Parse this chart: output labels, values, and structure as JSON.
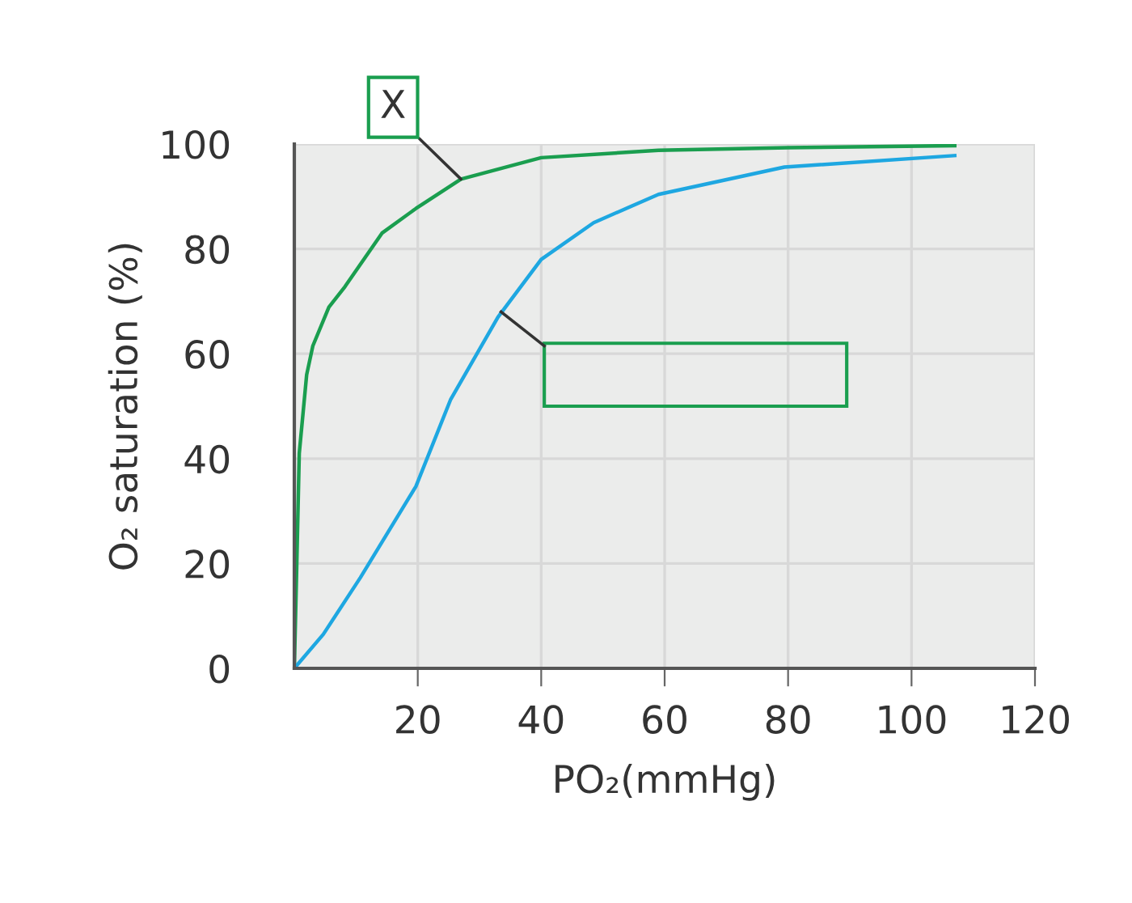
{
  "chart_data": {
    "type": "line",
    "xlabel": "PO₂(mmHg)",
    "ylabel": "O₂ saturation (%)",
    "xlim": [
      0,
      120
    ],
    "xticks": [
      20,
      40,
      60,
      80,
      100,
      120
    ],
    "ylim": [
      0,
      100
    ],
    "yticks": [
      0,
      20,
      40,
      60,
      80,
      100
    ],
    "grid": true,
    "marker": "none",
    "line_style": "solid",
    "series": [
      {
        "color": "#1a9e4f",
        "x": [
          0,
          0.4,
          0.8,
          2,
          3,
          5.6,
          8.2,
          14.2,
          19.7,
          27,
          40,
          59,
          80,
          107
        ],
        "values": [
          0,
          20,
          41,
          56,
          61.5,
          68.9,
          72.8,
          83,
          87.7,
          93.3,
          97.4,
          98.8,
          99.3,
          99.7
        ]
      },
      {
        "color": "#1ea7e1",
        "x": [
          0,
          4.7,
          10.7,
          19.7,
          25.3,
          33,
          40,
          48.5,
          59,
          79.4,
          107
        ],
        "values": [
          0,
          6.5,
          17.3,
          34.7,
          51.2,
          67,
          78,
          85,
          90.4,
          95.6,
          97.8
        ]
      }
    ],
    "annotations": [
      {
        "text": "X",
        "x": 27,
        "y": 93.3
      }
    ]
  }
}
